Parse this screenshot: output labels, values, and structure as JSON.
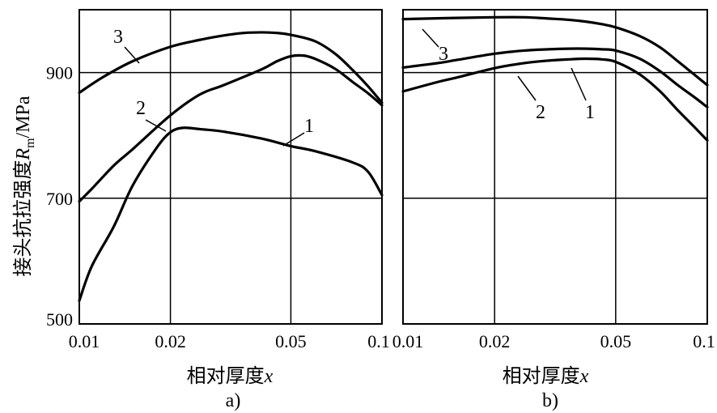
{
  "chart_data": [
    {
      "panel": "a)",
      "type": "line",
      "xscale": "log",
      "xlim": [
        0.01,
        0.1
      ],
      "ylim": [
        500,
        1000
      ],
      "xticks": [
        "0.01",
        "0.02",
        "0.05",
        "0.1"
      ],
      "yticks": [
        "900",
        "700",
        "500"
      ],
      "xlabel": "相对厚度",
      "xlabel_var": "x",
      "ylabel": "接头抗拉强度",
      "ylabel_sym": "R",
      "ylabel_sub": "m",
      "ylabel_unit": "/MPa",
      "grid": true,
      "series": [
        {
          "name": "1",
          "x": [
            0.01,
            0.011,
            0.013,
            0.015,
            0.018,
            0.02,
            0.022,
            0.025,
            0.03,
            0.04,
            0.05,
            0.06,
            0.08,
            0.09,
            0.1
          ],
          "y": [
            537,
            592,
            655,
            720,
            780,
            805,
            812,
            810,
            806,
            795,
            783,
            775,
            757,
            742,
            705
          ]
        },
        {
          "name": "2",
          "x": [
            0.01,
            0.011,
            0.013,
            0.015,
            0.02,
            0.025,
            0.03,
            0.04,
            0.045,
            0.05,
            0.055,
            0.06,
            0.07,
            0.08,
            0.09,
            0.1
          ],
          "y": [
            695,
            715,
            752,
            778,
            832,
            865,
            880,
            905,
            918,
            926,
            927,
            922,
            906,
            885,
            867,
            848
          ]
        },
        {
          "name": "3",
          "x": [
            0.01,
            0.012,
            0.015,
            0.02,
            0.025,
            0.03,
            0.035,
            0.04,
            0.045,
            0.05,
            0.06,
            0.07,
            0.08,
            0.09,
            0.1
          ],
          "y": [
            868,
            893,
            918,
            941,
            952,
            959,
            963,
            964,
            963,
            960,
            950,
            930,
            904,
            878,
            852
          ]
        }
      ]
    },
    {
      "panel": "b)",
      "type": "line",
      "xscale": "log",
      "xlim": [
        0.01,
        0.1
      ],
      "ylim": [
        500,
        1000
      ],
      "xticks": [
        "0.01",
        "0.02",
        "0.05",
        "0.1"
      ],
      "xlabel": "相对厚度",
      "xlabel_var": "x",
      "grid": true,
      "series": [
        {
          "name": "1",
          "x": [
            0.01,
            0.013,
            0.015,
            0.02,
            0.025,
            0.03,
            0.035,
            0.04,
            0.045,
            0.05,
            0.06,
            0.07,
            0.08,
            0.09,
            0.1
          ],
          "y": [
            870,
            885,
            892,
            907,
            915,
            919,
            921,
            922,
            921,
            917,
            897,
            870,
            840,
            815,
            792
          ]
        },
        {
          "name": "2",
          "x": [
            0.01,
            0.013,
            0.015,
            0.02,
            0.025,
            0.03,
            0.035,
            0.04,
            0.045,
            0.05,
            0.06,
            0.07,
            0.08,
            0.09,
            0.1
          ],
          "y": [
            908,
            915,
            920,
            930,
            935,
            937,
            938,
            938,
            937,
            935,
            922,
            902,
            880,
            862,
            845
          ]
        },
        {
          "name": "3",
          "x": [
            0.01,
            0.015,
            0.02,
            0.025,
            0.03,
            0.035,
            0.04,
            0.045,
            0.05,
            0.06,
            0.07,
            0.08,
            0.09,
            0.1
          ],
          "y": [
            985,
            987,
            988,
            988,
            986,
            984,
            981,
            977,
            972,
            958,
            940,
            918,
            898,
            880
          ]
        }
      ]
    }
  ]
}
